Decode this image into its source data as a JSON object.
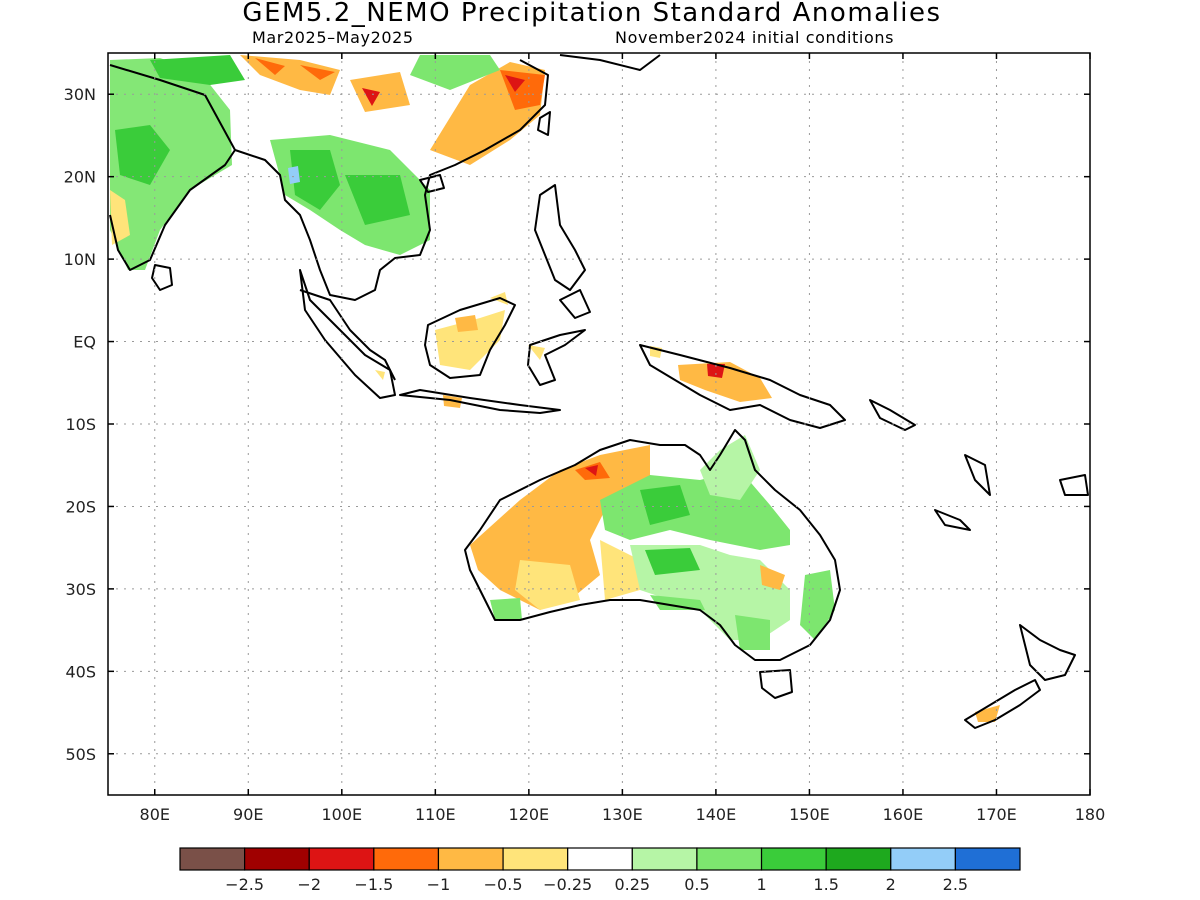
{
  "title": "GEM5.2_NEMO Precipitation Standard Anomalies",
  "period": "Mar2025–May2025",
  "init": "November2024 initial conditions",
  "lat_labels": [
    "30N",
    "20N",
    "10N",
    "EQ",
    "10S",
    "20S",
    "30S",
    "40S",
    "50S"
  ],
  "lat_values": [
    30,
    20,
    10,
    0,
    -10,
    -20,
    -30,
    -40,
    -50
  ],
  "lon_labels": [
    "80E",
    "90E",
    "100E",
    "110E",
    "120E",
    "130E",
    "140E",
    "150E",
    "160E",
    "170E",
    "180"
  ],
  "lon_values": [
    80,
    90,
    100,
    110,
    120,
    130,
    140,
    150,
    160,
    170,
    180
  ],
  "map_extent": {
    "lon_min": 75,
    "lon_max": 180,
    "lat_min": -55,
    "lat_max": 35
  },
  "colorbar": {
    "colors": [
      "#7a5048",
      "#a00000",
      "#dd1414",
      "#ff6a0a",
      "#ffb944",
      "#ffe47a",
      "#ffffff",
      "#b6f5a6",
      "#7de66f",
      "#3acc3a",
      "#1ea91e",
      "#93cdf8",
      "#1f6fd6"
    ],
    "labels": [
      "−2.5",
      "−2",
      "−1.5",
      "−1",
      "−0.5",
      "−0.25",
      "0.25",
      "0.5",
      "1",
      "1.5",
      "2",
      "2.5"
    ]
  }
}
